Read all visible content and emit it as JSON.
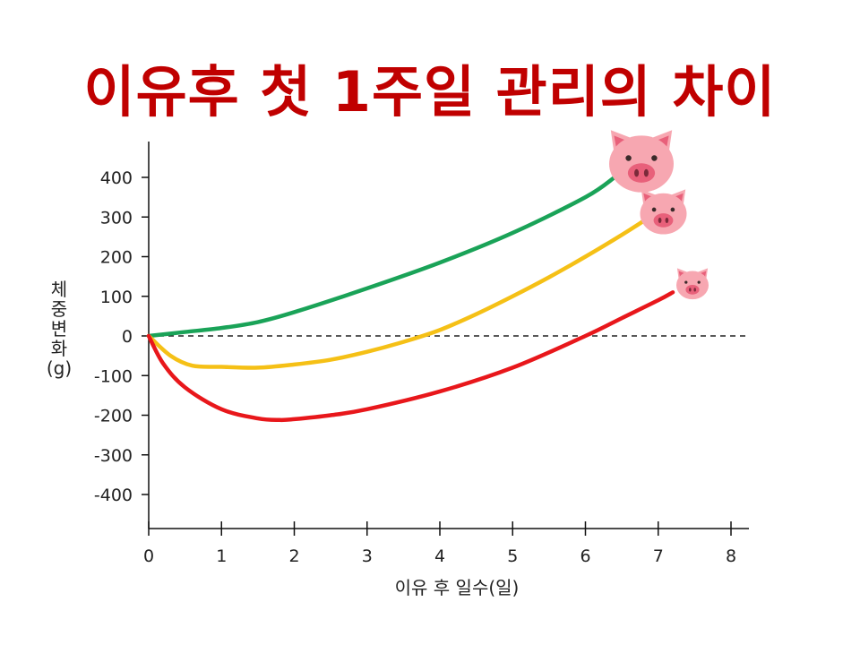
{
  "title": "이유후 첫 1주일 관리의 차이",
  "colors": {
    "title": "#c00000",
    "green": "#1aa358",
    "yellow": "#f5c016",
    "red": "#e8171b",
    "pig_face": "#f7a7b1",
    "pig_snout": "#e8607a"
  },
  "chart_data": {
    "type": "line",
    "title": "이유후 첫 1주일 관리의 차이",
    "xlabel": "이유 후 일수(일)",
    "ylabel": [
      "체",
      "중",
      "변",
      "화",
      "(g)"
    ],
    "xlim": [
      0,
      8
    ],
    "ylim": [
      -450,
      480
    ],
    "xticks": [
      0,
      1,
      2,
      3,
      4,
      5,
      6,
      7,
      8
    ],
    "yticks": [
      400,
      300,
      200,
      100,
      0,
      -100,
      -200,
      -300,
      -400
    ],
    "reference_line": {
      "y": 0,
      "style": "dashed"
    },
    "series": [
      {
        "color": "green",
        "x": [
          0,
          0.5,
          1,
          1.5,
          2,
          3,
          4,
          5,
          6,
          6.4
        ],
        "y": [
          0,
          10,
          20,
          35,
          60,
          120,
          185,
          260,
          350,
          400
        ],
        "end_icon": "pig-large-icon"
      },
      {
        "color": "yellow",
        "x": [
          0,
          0.3,
          0.6,
          1,
          1.5,
          2,
          2.5,
          3,
          3.5,
          4,
          4.5,
          5,
          5.5,
          6,
          6.5,
          6.8
        ],
        "y": [
          0,
          -50,
          -75,
          -78,
          -80,
          -72,
          -60,
          -40,
          -15,
          15,
          55,
          100,
          148,
          200,
          255,
          290
        ],
        "end_icon": "pig-medium-icon"
      },
      {
        "color": "red",
        "x": [
          0,
          0.2,
          0.5,
          1,
          1.5,
          1.8,
          2,
          2.5,
          3,
          4,
          5,
          6,
          6.5,
          7,
          7.2
        ],
        "y": [
          0,
          -70,
          -130,
          -185,
          -208,
          -212,
          -210,
          -200,
          -185,
          -140,
          -80,
          0,
          45,
          90,
          110
        ],
        "end_icon": "pig-small-icon"
      }
    ]
  }
}
